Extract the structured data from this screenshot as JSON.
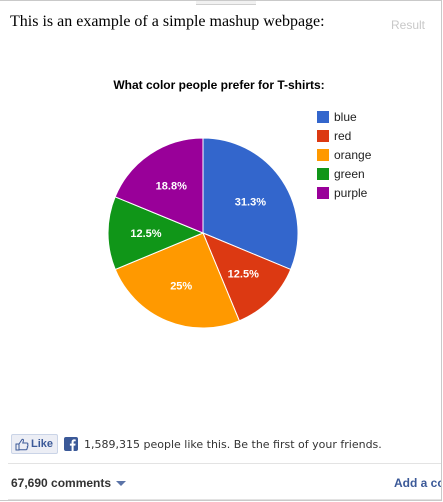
{
  "page": {
    "heading": "This is an example of a simple mashup webpage:",
    "result_label": "Result"
  },
  "chart_data": {
    "type": "pie",
    "title": "What color people prefer for T-shirts:",
    "series": [
      {
        "name": "blue",
        "value": 31.3,
        "label": "31.3%",
        "color": "#3366cc"
      },
      {
        "name": "red",
        "value": 12.5,
        "label": "12.5%",
        "color": "#dc3912"
      },
      {
        "name": "orange",
        "value": 25,
        "label": "25%",
        "color": "#ff9900"
      },
      {
        "name": "green",
        "value": 12.5,
        "label": "12.5%",
        "color": "#109618"
      },
      {
        "name": "purple",
        "value": 18.8,
        "label": "18.8%",
        "color": "#990099"
      }
    ],
    "legend_position": "right"
  },
  "facebook": {
    "like_button_label": "Like",
    "like_count_text": "1,589,315 people like this. Be the first of your friends.",
    "comments_count": "67,690 comments",
    "add_comment_label": "Add a co",
    "brand_color": "#3b5998"
  }
}
